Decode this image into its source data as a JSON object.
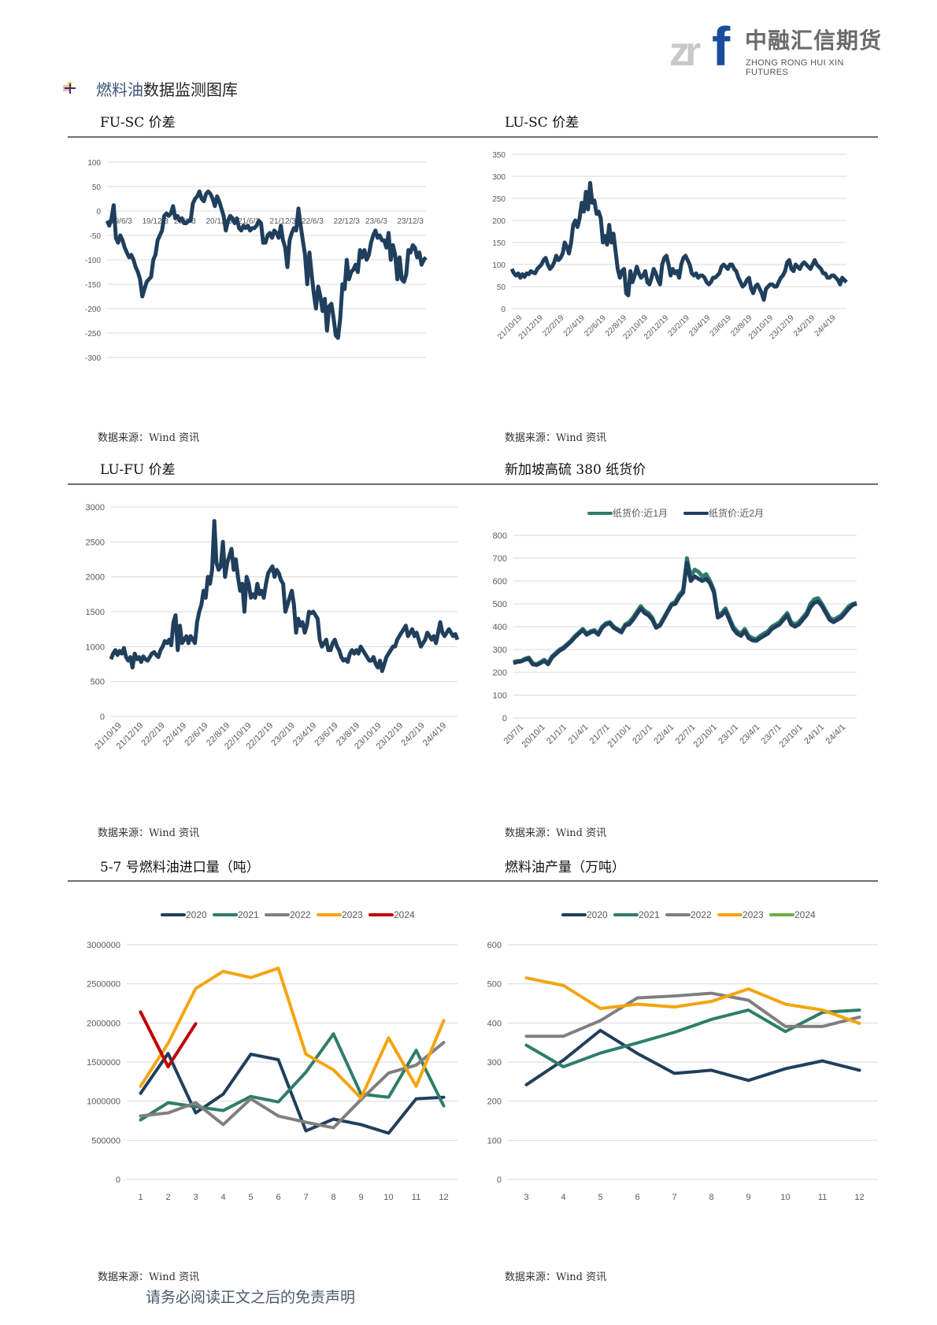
{
  "header": {
    "logo_mark": "zrf",
    "logo_cn": "中融汇信期货",
    "logo_en": "ZHONG RONG HUI XIN FUTURES"
  },
  "section": {
    "title_highlight": "燃料油",
    "title_rest": "数据监测图库"
  },
  "source_label": "数据来源：Wind 资讯",
  "footer": "请务必阅读正文之后的免责声明",
  "colors": {
    "navy": "#203f5d",
    "teal": "#2e7d6b",
    "gray": "#7f7f7f",
    "orange": "#f5a40f",
    "red": "#c00000",
    "green": "#70ad47",
    "grid": "#d9d9d9"
  },
  "chart_data": [
    {
      "id": "fu_sc",
      "type": "line",
      "title": "FU-SC 价差",
      "ylim": [
        -300,
        100
      ],
      "yticks": [
        100,
        50,
        0,
        -50,
        -100,
        -150,
        -200,
        -250,
        -300
      ],
      "xtick_labels": [
        "19/6/3",
        "19/12/3",
        "20/6/3",
        "20/12/3",
        "21/6/3",
        "21/12/3",
        "22/6/3",
        "22/12/3",
        "23/6/3",
        "23/12/3"
      ],
      "x_axis_at": 0,
      "grid": true,
      "series": [
        {
          "name": "FU-SC",
          "color": "navy",
          "values": [
            -20,
            -30,
            -15,
            12,
            -55,
            -65,
            -50,
            -60,
            -75,
            -85,
            -95,
            -90,
            -100,
            -115,
            -125,
            -140,
            -175,
            -160,
            -145,
            -140,
            -135,
            -100,
            -90,
            -60,
            -50,
            -40,
            -10,
            -5,
            -10,
            -5,
            10,
            -15,
            -10,
            -20,
            -15,
            -25,
            -25,
            -20,
            -20,
            15,
            25,
            30,
            40,
            25,
            20,
            35,
            40,
            35,
            25,
            10,
            30,
            20,
            5,
            -10,
            -40,
            -20,
            -10,
            -15,
            -25,
            -15,
            -35,
            -40,
            -30,
            -35,
            -30,
            -40,
            -35,
            -35,
            -30,
            -20,
            -25,
            -65,
            -65,
            -50,
            -45,
            -55,
            -40,
            -45,
            -55,
            -30,
            -60,
            -75,
            -115,
            -60,
            -45,
            -35,
            -40,
            5,
            -30,
            -60,
            -90,
            -150,
            -85,
            -130,
            -170,
            -200,
            -155,
            -175,
            -205,
            -180,
            -245,
            -195,
            -190,
            -220,
            -255,
            -260,
            -220,
            -150,
            -160,
            -100,
            -140,
            -125,
            -120,
            -110,
            -125,
            -80,
            -95,
            -80,
            -100,
            -90,
            -65,
            -50,
            -40,
            -55,
            -50,
            -60,
            -60,
            -75,
            -45,
            -100,
            -70,
            -90,
            -140,
            -95,
            -140,
            -145,
            -130,
            -80,
            -85,
            -70,
            -75,
            -95,
            -85,
            -110,
            -100,
            -95
          ]
        }
      ]
    },
    {
      "id": "lu_sc",
      "type": "line",
      "title": "LU-SC 价差",
      "ylim": [
        0,
        350
      ],
      "yticks": [
        350,
        300,
        250,
        200,
        150,
        100,
        50,
        0
      ],
      "xtick_labels": [
        "21/10/19",
        "21/12/19",
        "22/2/19",
        "22/4/19",
        "22/6/19",
        "22/8/19",
        "22/10/19",
        "22/12/19",
        "23/2/19",
        "23/4/19",
        "23/6/19",
        "23/8/19",
        "23/10/19",
        "23/12/19",
        "24/2/19",
        "24/4/19"
      ],
      "grid": true,
      "series": [
        {
          "name": "LU-SC",
          "color": "navy",
          "values": [
            90,
            80,
            75,
            80,
            70,
            78,
            72,
            80,
            78,
            85,
            82,
            80,
            90,
            95,
            100,
            110,
            115,
            100,
            90,
            95,
            105,
            120,
            110,
            115,
            125,
            150,
            140,
            125,
            150,
            190,
            200,
            185,
            205,
            240,
            220,
            265,
            225,
            285,
            240,
            245,
            215,
            220,
            205,
            150,
            165,
            145,
            190,
            150,
            170,
            130,
            90,
            70,
            85,
            90,
            35,
            30,
            85,
            60,
            75,
            95,
            80,
            70,
            75,
            85,
            60,
            55,
            70,
            90,
            80,
            65,
            55,
            100,
            115,
            120,
            100,
            75,
            90,
            80,
            85,
            70,
            100,
            115,
            120,
            110,
            100,
            80,
            75,
            80,
            70,
            75,
            75,
            70,
            60,
            55,
            60,
            70,
            70,
            75,
            80,
            95,
            100,
            95,
            90,
            100,
            100,
            90,
            85,
            70,
            60,
            50,
            55,
            65,
            70,
            45,
            35,
            50,
            55,
            45,
            35,
            20,
            45,
            50,
            55,
            55,
            50,
            50,
            60,
            70,
            75,
            85,
            105,
            110,
            90,
            85,
            100,
            95,
            90,
            100,
            105,
            100,
            95,
            90,
            100,
            110,
            100,
            95,
            90,
            80,
            80,
            70,
            70,
            75,
            75,
            70,
            65,
            55,
            70,
            65,
            60
          ]
        }
      ]
    },
    {
      "id": "lu_fu",
      "type": "line",
      "title": "LU-FU 价差",
      "ylim": [
        0,
        3000
      ],
      "yticks": [
        3000,
        2500,
        2000,
        1500,
        1000,
        500,
        0
      ],
      "xtick_labels": [
        "21/10/19",
        "21/12/19",
        "22/2/19",
        "22/4/19",
        "22/6/19",
        "22/8/19",
        "22/10/19",
        "22/12/19",
        "23/2/19",
        "23/4/19",
        "23/6/19",
        "23/8/19",
        "23/10/19",
        "23/12/19",
        "24/2/19",
        "24/4/19"
      ],
      "grid": true,
      "series": [
        {
          "name": "LU-FU",
          "color": "navy",
          "values": [
            820,
            900,
            950,
            880,
            940,
            900,
            980,
            850,
            800,
            850,
            700,
            900,
            820,
            850,
            780,
            860,
            820,
            800,
            850,
            900,
            920,
            880,
            850,
            950,
            1000,
            1080,
            1050,
            1100,
            1020,
            1350,
            1450,
            950,
            1300,
            1050,
            1100,
            1150,
            1050,
            1150,
            1100,
            1050,
            1350,
            1500,
            1600,
            1800,
            1700,
            2000,
            1900,
            2100,
            2800,
            2200,
            2100,
            2150,
            2500,
            2000,
            2200,
            2300,
            2400,
            2100,
            2250,
            2000,
            1800,
            1900,
            1500,
            2000,
            1900,
            1700,
            1750,
            1700,
            1900,
            1750,
            1800,
            1700,
            1900,
            2050,
            2100,
            2150,
            2000,
            2100,
            2050,
            1950,
            1900,
            1500,
            1600,
            1700,
            1800,
            1600,
            1200,
            1400,
            1300,
            1350,
            1200,
            1300,
            1500,
            1480,
            1500,
            1450,
            1400,
            1100,
            1000,
            1050,
            1100,
            950,
            950,
            1050,
            1100,
            1000,
            950,
            850,
            800,
            820,
            780,
            900,
            950,
            900,
            950,
            900,
            1000,
            950,
            900,
            850,
            800,
            800,
            850,
            750,
            700,
            800,
            650,
            750,
            850,
            900,
            950,
            1000,
            1000,
            1100,
            1150,
            1200,
            1250,
            1300,
            1150,
            1200,
            1250,
            1150,
            1200,
            1100,
            1000,
            1050,
            1100,
            1200,
            1150,
            1100,
            1150,
            1050,
            1200,
            1350,
            1200,
            1150,
            1200,
            1250,
            1200,
            1150,
            1180,
            1100
          ]
        }
      ]
    },
    {
      "id": "sg380",
      "type": "line",
      "title": "新加坡高硫 380 纸货价",
      "ylim": [
        0,
        800
      ],
      "yticks": [
        800,
        700,
        600,
        500,
        400,
        300,
        200,
        100,
        0
      ],
      "xtick_labels": [
        "20/7/1",
        "20/10/1",
        "21/1/1",
        "21/4/1",
        "21/7/1",
        "21/10/1",
        "22/1/1",
        "22/4/1",
        "22/7/1",
        "22/10/1",
        "23/1/1",
        "23/4/1",
        "23/7/1",
        "23/10/1",
        "24/1/1",
        "24/4/1"
      ],
      "legend": "top",
      "grid": true,
      "series": [
        {
          "name": "纸货价:近1月",
          "color": "teal",
          "values": [
            245,
            250,
            250,
            260,
            265,
            240,
            235,
            245,
            255,
            240,
            270,
            285,
            300,
            310,
            325,
            340,
            360,
            375,
            390,
            370,
            380,
            385,
            370,
            400,
            415,
            420,
            400,
            390,
            380,
            410,
            420,
            440,
            465,
            490,
            470,
            460,
            440,
            400,
            410,
            440,
            470,
            500,
            510,
            540,
            560,
            700,
            620,
            650,
            640,
            620,
            630,
            600,
            560,
            450,
            460,
            480,
            440,
            400,
            380,
            370,
            390,
            360,
            350,
            345,
            360,
            370,
            380,
            400,
            410,
            420,
            440,
            460,
            420,
            410,
            420,
            440,
            460,
            500,
            520,
            525,
            500,
            470,
            440,
            430,
            440,
            450,
            470,
            490,
            500,
            505
          ]
        },
        {
          "name": "纸货价:近2月",
          "color": "navy",
          "values": [
            240,
            245,
            248,
            255,
            260,
            235,
            232,
            240,
            250,
            235,
            265,
            280,
            295,
            305,
            320,
            335,
            355,
            370,
            385,
            365,
            375,
            380,
            365,
            395,
            410,
            415,
            395,
            385,
            375,
            405,
            410,
            430,
            455,
            480,
            460,
            450,
            430,
            395,
            405,
            435,
            465,
            495,
            500,
            530,
            550,
            680,
            600,
            620,
            610,
            600,
            610,
            590,
            550,
            440,
            450,
            470,
            430,
            390,
            370,
            360,
            380,
            350,
            340,
            338,
            350,
            360,
            370,
            390,
            400,
            410,
            430,
            450,
            410,
            400,
            410,
            430,
            450,
            485,
            505,
            510,
            490,
            460,
            430,
            420,
            430,
            440,
            460,
            480,
            495,
            500
          ]
        }
      ]
    },
    {
      "id": "import_57",
      "type": "line",
      "title": "5-7 号燃料油进口量（吨）",
      "categories": [
        "1",
        "2",
        "3",
        "4",
        "5",
        "6",
        "7",
        "8",
        "9",
        "10",
        "11",
        "12"
      ],
      "ylim": [
        0,
        3000000
      ],
      "yticks": [
        3000000,
        2500000,
        2000000,
        1500000,
        1000000,
        500000,
        0
      ],
      "legend": "top",
      "grid": true,
      "series": [
        {
          "name": "2020",
          "color": "navy",
          "values": [
            1100000,
            1610000,
            850000,
            1090000,
            1600000,
            1530000,
            620000,
            770000,
            700000,
            590000,
            1030000,
            1050000
          ]
        },
        {
          "name": "2021",
          "color": "teal",
          "values": [
            760000,
            980000,
            930000,
            880000,
            1060000,
            990000,
            1370000,
            1860000,
            1090000,
            1050000,
            1650000,
            940000
          ]
        },
        {
          "name": "2022",
          "color": "gray",
          "values": [
            810000,
            850000,
            980000,
            700000,
            1030000,
            810000,
            730000,
            660000,
            1020000,
            1360000,
            1460000,
            1750000
          ]
        },
        {
          "name": "2023",
          "color": "orange",
          "values": [
            1190000,
            1740000,
            2440000,
            2660000,
            2580000,
            2700000,
            1600000,
            1400000,
            1040000,
            1810000,
            1190000,
            2030000
          ]
        },
        {
          "name": "2024",
          "color": "red",
          "values": [
            2140000,
            1440000,
            1990000
          ]
        }
      ]
    },
    {
      "id": "production",
      "type": "line",
      "title": "燃料油产量（万吨）",
      "categories": [
        "3",
        "4",
        "5",
        "6",
        "7",
        "8",
        "9",
        "10",
        "11",
        "12"
      ],
      "ylim": [
        0,
        600
      ],
      "yticks": [
        600,
        500,
        400,
        300,
        200,
        100,
        0
      ],
      "legend": "top",
      "grid": true,
      "series": [
        {
          "name": "2020",
          "color": "navy",
          "values": [
            242,
            305,
            381,
            322,
            271,
            279,
            253,
            283,
            303,
            279
          ]
        },
        {
          "name": "2021",
          "color": "teal",
          "values": [
            343,
            288,
            323,
            349,
            376,
            409,
            433,
            378,
            427,
            433
          ]
        },
        {
          "name": "2022",
          "color": "gray",
          "values": [
            366,
            366,
            406,
            464,
            469,
            476,
            458,
            391,
            391,
            415
          ]
        },
        {
          "name": "2023",
          "color": "orange",
          "values": [
            515,
            496,
            437,
            448,
            441,
            455,
            487,
            448,
            433,
            399
          ]
        },
        {
          "name": "2024",
          "color": "green",
          "values": []
        }
      ]
    }
  ]
}
